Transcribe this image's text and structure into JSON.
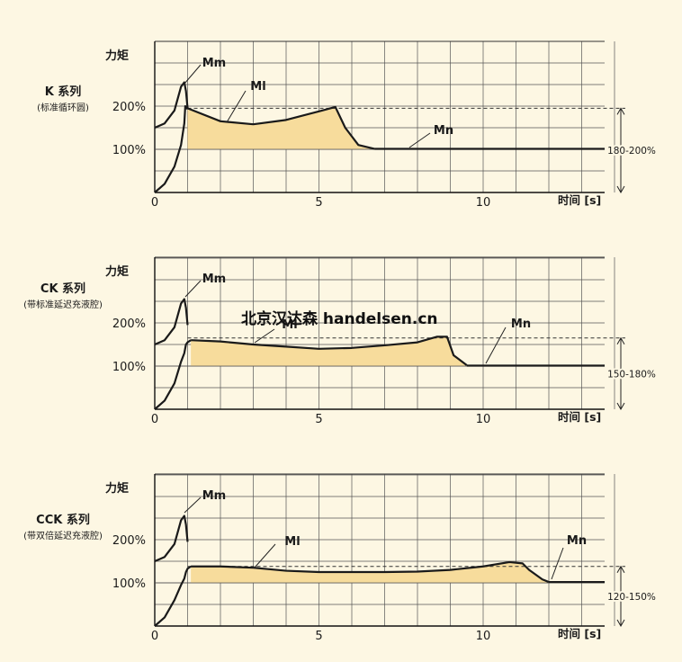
{
  "watermark": "北京汉达森 handelsen.cn",
  "chart_data": [
    {
      "type": "line",
      "title": "K 系列",
      "subtitle": "(标准循环圆)",
      "ylabel": "力矩",
      "xlabel": "时间 [s]",
      "xlim": [
        0,
        13.7
      ],
      "x_ticks": [
        0,
        5,
        10
      ],
      "y_ticks": [
        {
          "value": 100,
          "label": "100%"
        },
        {
          "value": 200,
          "label": "200%"
        }
      ],
      "grid": true,
      "dashed_level": 195,
      "range_label": "180-200%",
      "annotations": [
        "Mm",
        "Ml",
        "Mn"
      ],
      "series": [
        {
          "name": "Mm",
          "x": [
            0,
            0.3,
            0.6,
            0.8,
            0.9,
            0.93,
            0.97,
            1.0
          ],
          "y": [
            0,
            20,
            60,
            110,
            160,
            200,
            196,
            193
          ]
        },
        {
          "name": "Mm",
          "x": [
            0,
            0.3,
            0.6,
            0.8,
            0.9,
            0.95,
            1.0
          ],
          "y": [
            150,
            160,
            190,
            245,
            255,
            235,
            195
          ]
        },
        {
          "name": "Ml",
          "x": [
            1.0,
            2.0,
            3.0,
            4.0,
            5.0,
            5.5,
            5.8,
            6.2,
            6.7
          ],
          "y": [
            195,
            165,
            158,
            168,
            188,
            198,
            150,
            110,
            101
          ]
        },
        {
          "name": "Mn",
          "x": [
            6.7,
            13.7
          ],
          "y": [
            101,
            101
          ]
        }
      ]
    },
    {
      "type": "line",
      "title": "CK 系列",
      "subtitle": "(带标准延迟充液腔)",
      "ylabel": "力矩",
      "xlabel": "时间 [s]",
      "xlim": [
        0,
        13.7
      ],
      "x_ticks": [
        0,
        5,
        10
      ],
      "y_ticks": [
        {
          "value": 100,
          "label": "100%"
        },
        {
          "value": 200,
          "label": "200%"
        }
      ],
      "grid": true,
      "dashed_level": 165,
      "range_label": "150-180%",
      "annotations": [
        "Mm",
        "Ml",
        "Mn"
      ],
      "series": [
        {
          "name": "Mm",
          "x": [
            0,
            0.3,
            0.6,
            0.8,
            0.9,
            0.95,
            1.0,
            1.1
          ],
          "y": [
            0,
            20,
            60,
            110,
            130,
            150,
            155,
            160
          ]
        },
        {
          "name": "Mm",
          "x": [
            0,
            0.3,
            0.6,
            0.8,
            0.9,
            0.95,
            1.0
          ],
          "y": [
            150,
            160,
            190,
            245,
            255,
            235,
            195
          ]
        },
        {
          "name": "Ml",
          "x": [
            1.1,
            2.0,
            3.0,
            4.0,
            5.0,
            6.0,
            7.0,
            8.0,
            8.6,
            8.9,
            9.1,
            9.5
          ],
          "y": [
            160,
            157,
            150,
            145,
            140,
            142,
            148,
            155,
            168,
            168,
            125,
            102
          ]
        },
        {
          "name": "Mn",
          "x": [
            9.5,
            13.7
          ],
          "y": [
            101,
            101
          ]
        }
      ]
    },
    {
      "type": "line",
      "title": "CCK 系列",
      "subtitle": "(带双倍延迟充液腔)",
      "ylabel": "力矩",
      "xlabel": "时间 [s]",
      "xlim": [
        0,
        13.7
      ],
      "x_ticks": [
        0,
        5,
        10
      ],
      "y_ticks": [
        {
          "value": 100,
          "label": "100%"
        },
        {
          "value": 200,
          "label": "200%"
        }
      ],
      "grid": true,
      "dashed_level": 138,
      "range_label": "120-150%",
      "annotations": [
        "Mm",
        "Ml",
        "Mn"
      ],
      "series": [
        {
          "name": "Mm",
          "x": [
            0,
            0.3,
            0.6,
            0.8,
            0.9,
            0.95,
            1.0,
            1.1
          ],
          "y": [
            0,
            20,
            60,
            95,
            110,
            125,
            133,
            138
          ]
        },
        {
          "name": "Mm",
          "x": [
            0,
            0.3,
            0.6,
            0.8,
            0.9,
            0.95,
            1.0
          ],
          "y": [
            150,
            160,
            190,
            245,
            255,
            235,
            195
          ]
        },
        {
          "name": "Ml",
          "x": [
            1.1,
            2.0,
            3.0,
            4.0,
            5.0,
            6.0,
            7.0,
            8.0,
            9.0,
            10.0,
            10.8,
            11.2,
            11.4,
            11.8,
            12.0
          ],
          "y": [
            138,
            138,
            135,
            128,
            125,
            125,
            125,
            126,
            130,
            138,
            148,
            145,
            130,
            108,
            102
          ]
        },
        {
          "name": "Mn",
          "x": [
            12.0,
            13.7
          ],
          "y": [
            102,
            102
          ]
        }
      ]
    }
  ]
}
